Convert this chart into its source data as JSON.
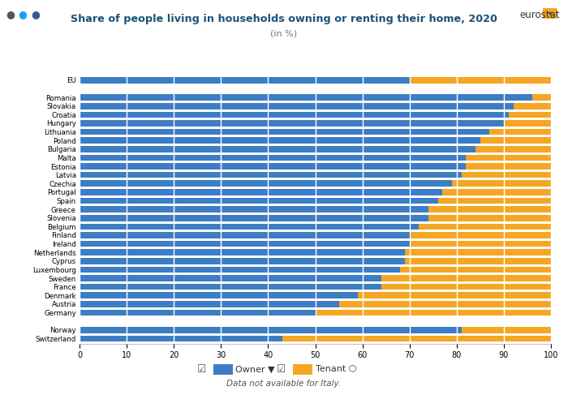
{
  "title": "Share of people living in households owning or renting their home, 2020",
  "subtitle": "(in %)",
  "footer": "Data not available for Italy.",
  "owner_color": "#3c7dc4",
  "tenant_color": "#f5a623",
  "background_color": "#ffffff",
  "title_color": "#1a5276",
  "subtitle_color": "#777777",
  "countries": [
    "EU",
    "",
    "Romania",
    "Slovakia",
    "Croatia",
    "Hungary",
    "Lithuania",
    "Poland",
    "Bulgaria",
    "Malta",
    "Estonia",
    "Latvia",
    "Czechia",
    "Portugal",
    "Spain",
    "Greece",
    "Slovenia",
    "Belgium",
    "Finland",
    "Ireland",
    "Netherlands",
    "Cyprus",
    "Luxembourg",
    "Sweden",
    "France",
    "Denmark",
    "Austria",
    "Germany",
    "",
    "Norway",
    "Switzerland"
  ],
  "owner": [
    70,
    0,
    96,
    92,
    91,
    90,
    87,
    85,
    84,
    82,
    82,
    81,
    79,
    77,
    76,
    74,
    74,
    72,
    70,
    70,
    69,
    69,
    68,
    64,
    64,
    59,
    55,
    50,
    0,
    81,
    43
  ],
  "tenant": [
    30,
    0,
    4,
    8,
    9,
    10,
    13,
    15,
    16,
    18,
    18,
    19,
    21,
    23,
    24,
    26,
    26,
    28,
    30,
    30,
    31,
    31,
    32,
    36,
    36,
    41,
    45,
    50,
    0,
    19,
    57
  ],
  "xlim": [
    0,
    100
  ],
  "xticks": [
    0,
    10,
    20,
    30,
    40,
    50,
    60,
    70,
    80,
    90,
    100
  ]
}
